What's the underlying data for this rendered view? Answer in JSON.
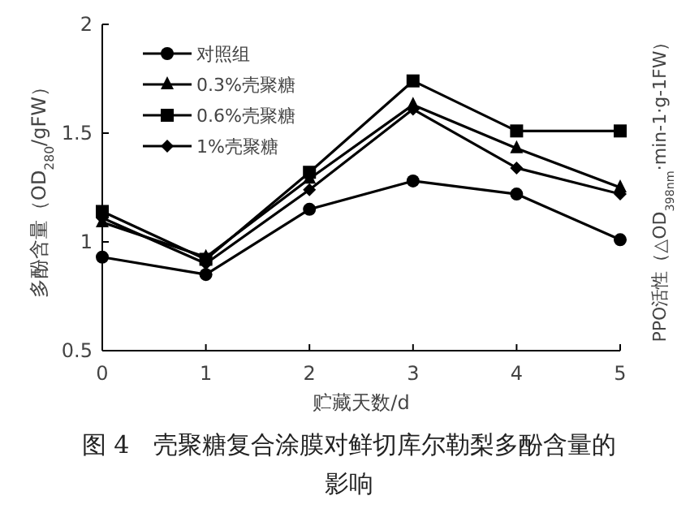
{
  "chart_data": {
    "type": "line",
    "xlabel": "贮藏天数/d",
    "ylabel": "多酚含量（OD$_{280}$/gFW）",
    "y2label": "PPO活性（△OD$_{398nm}$·min-1·g-1FW）",
    "annotations": [
      "图 4　壳聚糖复合涂膜对鲜切库尔勒梨多酚含量的影响"
    ],
    "x": [
      0,
      1,
      2,
      3,
      4,
      5
    ],
    "xlim": [
      0,
      5
    ],
    "xticks": [
      0,
      1,
      2,
      3,
      4,
      5
    ],
    "ylim": [
      0.5,
      2
    ],
    "yticks": [
      0.5,
      1,
      1.5,
      2
    ],
    "legend": "top left",
    "grid": false,
    "line_style": "solid",
    "series": [
      {
        "name": "对照组",
        "color": "#000000",
        "marker": "circle",
        "values": [
          0.93,
          0.85,
          1.15,
          1.28,
          1.22,
          1.01
        ]
      },
      {
        "name": "0.3%壳聚糖",
        "color": "#000000",
        "marker": "triangle",
        "values": [
          1.09,
          0.93,
          1.29,
          1.63,
          1.43,
          1.25
        ]
      },
      {
        "name": "0.6%壳聚糖",
        "color": "#000000",
        "marker": "square",
        "values": [
          1.14,
          0.92,
          1.32,
          1.74,
          1.51,
          1.51
        ]
      },
      {
        "name": "1%壳聚糖",
        "color": "#000000",
        "marker": "diamond",
        "values": [
          1.11,
          0.9,
          1.24,
          1.61,
          1.34,
          1.22
        ]
      }
    ]
  }
}
